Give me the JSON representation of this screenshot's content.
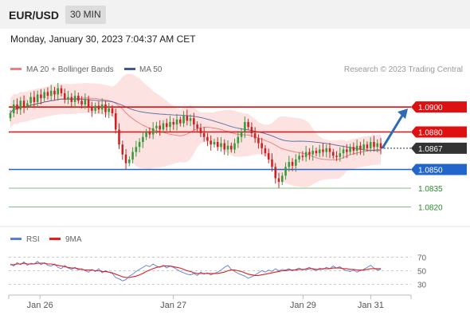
{
  "header": {
    "symbol": "EUR/USD",
    "interval": "30 MIN"
  },
  "datetime": "Monday, January 30, 2023 7:04:37 AM CET",
  "legend": {
    "ma20": {
      "label": "MA 20 + Bollinger Bands",
      "color": "#f08080"
    },
    "ma50": {
      "label": "MA 50",
      "color": "#3d5a98"
    },
    "rsi": {
      "label": "RSI",
      "color": "#5b7fd6"
    },
    "ma9": {
      "label": "9MA",
      "color": "#e02020"
    }
  },
  "copyright": "Research © 2023 Trading Central",
  "colors": {
    "up": "#3a9a3a",
    "down": "#cc2222",
    "resistance": "#dd1111",
    "support": "#2266cc",
    "support_minor": "#55aa55",
    "price_tag": "#333333",
    "band_fill": "#fde2e2",
    "arrow": "#2d6cb5"
  },
  "chart_data": [
    {
      "type": "candlestick",
      "ylim": [
        1.0805,
        1.0925
      ],
      "x_ticks": [
        "Jan 26",
        "Jan 27",
        "Jan 29",
        "Jan 31"
      ],
      "current_price": "1.0867",
      "levels": [
        {
          "label": "1.0900",
          "value": 1.09,
          "kind": "resistance"
        },
        {
          "label": "1.0880",
          "value": 1.088,
          "kind": "resistance"
        },
        {
          "label": "1.0850",
          "value": 1.085,
          "kind": "support"
        },
        {
          "label": "1.0835",
          "value": 1.0835,
          "kind": "support_minor"
        },
        {
          "label": "1.0820",
          "value": 1.082,
          "kind": "support_minor"
        }
      ],
      "forecast": {
        "from": 1.0867,
        "to": 1.09,
        "direction": "up"
      },
      "close": [
        1.0895,
        1.0902,
        1.0898,
        1.0905,
        1.09,
        1.0903,
        1.0908,
        1.0904,
        1.091,
        1.0907,
        1.0912,
        1.0909,
        1.0913,
        1.091,
        1.0915,
        1.0911,
        1.0906,
        1.0908,
        1.0904,
        1.0909,
        1.0905,
        1.0902,
        1.0906,
        1.09,
        1.0897,
        1.0901,
        1.0898,
        1.0902,
        1.0896,
        1.0899,
        1.0895,
        1.0882,
        1.087,
        1.0862,
        1.0855,
        1.0858,
        1.0864,
        1.0868,
        1.0872,
        1.0876,
        1.088,
        1.0878,
        1.0883,
        1.0885,
        1.0882,
        1.0887,
        1.0884,
        1.0888,
        1.0886,
        1.089,
        1.0887,
        1.0893,
        1.0889,
        1.0891,
        1.0886,
        1.0883,
        1.0879,
        1.0876,
        1.0873,
        1.087,
        1.0872,
        1.0868,
        1.0871,
        1.0866,
        1.0869,
        1.0866,
        1.0871,
        1.0876,
        1.088,
        1.0888,
        1.0884,
        1.0879,
        1.0875,
        1.0871,
        1.0867,
        1.0863,
        1.0858,
        1.0852,
        1.0843,
        1.084,
        1.0845,
        1.0852,
        1.0856,
        1.0853,
        1.0858,
        1.0861,
        1.086,
        1.0864,
        1.0862,
        1.0865,
        1.0863,
        1.0866,
        1.0864,
        1.0867,
        1.0864,
        1.0861,
        1.086,
        1.0863,
        1.0866,
        1.0864,
        1.0868,
        1.0865,
        1.0869,
        1.0866,
        1.087,
        1.0867,
        1.0872,
        1.0868,
        1.0871,
        1.0867
      ]
    },
    {
      "type": "line",
      "title": "RSI",
      "ylim": [
        20,
        80
      ],
      "y_ticks": [
        70,
        50,
        30
      ],
      "series": [
        {
          "name": "RSI",
          "values": [
            60,
            57,
            62,
            59,
            63,
            58,
            61,
            60,
            64,
            59,
            62,
            58,
            57,
            60,
            55,
            53,
            58,
            54,
            52,
            55,
            51,
            53,
            50,
            48,
            52,
            49,
            53,
            47,
            50,
            48,
            46,
            40,
            38,
            35,
            37,
            42,
            45,
            49,
            52,
            55,
            58,
            56,
            60,
            57,
            55,
            58,
            54,
            57,
            55,
            52,
            49,
            47,
            45,
            44,
            46,
            43,
            48,
            45,
            47,
            44,
            46,
            48,
            51,
            55,
            58,
            52,
            49,
            46,
            44,
            42,
            39,
            41,
            44,
            47,
            50,
            48,
            51,
            49,
            53,
            50,
            52,
            51,
            53,
            50,
            52,
            54,
            51,
            53,
            55,
            52,
            50,
            54,
            52,
            55,
            53,
            57,
            54,
            56,
            52,
            50,
            49,
            51,
            48,
            50,
            52,
            55,
            58,
            54,
            51,
            52
          ]
        },
        {
          "name": "9MA",
          "values": [
            59,
            59,
            60,
            60,
            61,
            60,
            60,
            60,
            61,
            61,
            61,
            60,
            60,
            59,
            58,
            57,
            56,
            55,
            54,
            54,
            53,
            52,
            51,
            51,
            51,
            50,
            50,
            49,
            49,
            48,
            47,
            45,
            43,
            41,
            40,
            40,
            41,
            42,
            44,
            46,
            49,
            51,
            53,
            55,
            56,
            57,
            57,
            57,
            56,
            55,
            54,
            52,
            50,
            49,
            47,
            46,
            46,
            46,
            46,
            46,
            46,
            46,
            47,
            48,
            50,
            51,
            51,
            50,
            49,
            47,
            45,
            44,
            43,
            43,
            44,
            45,
            46,
            47,
            48,
            49,
            50,
            50,
            51,
            51,
            51,
            52,
            52,
            52,
            53,
            53,
            52,
            52,
            53,
            53,
            53,
            54,
            54,
            54,
            53,
            53,
            52,
            52,
            51,
            51,
            51,
            52,
            53,
            53,
            53,
            53
          ]
        }
      ]
    }
  ]
}
